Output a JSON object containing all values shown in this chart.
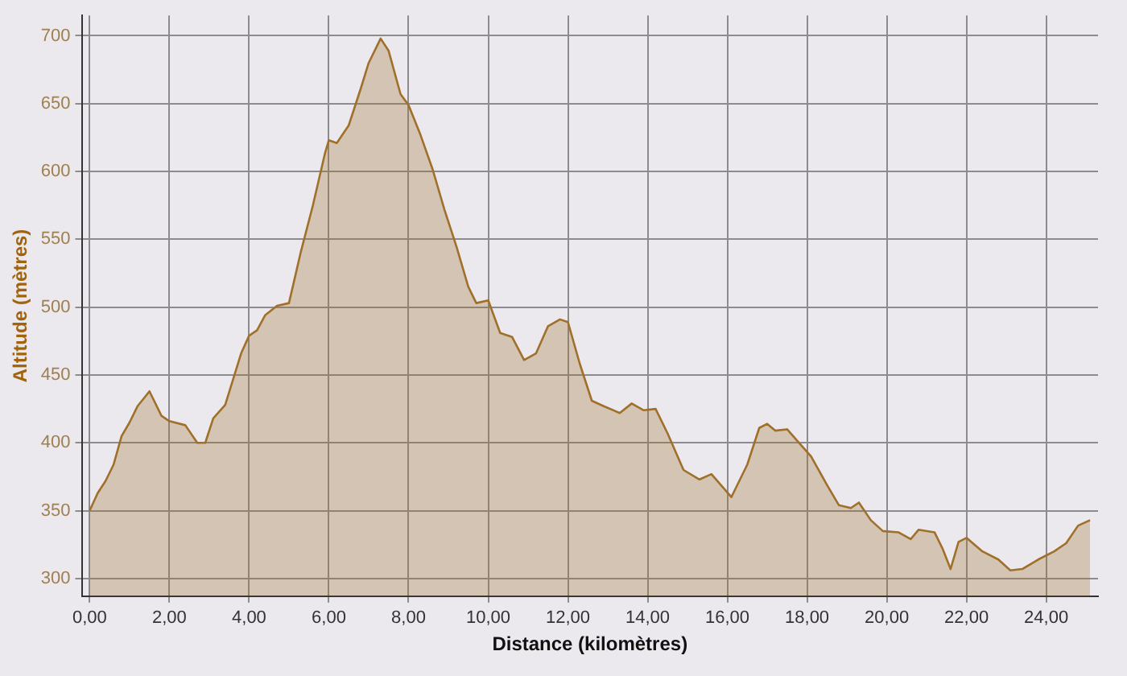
{
  "chart_data": {
    "type": "area",
    "xlabel": "Distance (kilomètres)",
    "ylabel": "Altitude (mètres)",
    "xlim": [
      -0.2,
      25.3
    ],
    "ylim": [
      287,
      715
    ],
    "xticks": [
      {
        "value": 0,
        "label": "0,00"
      },
      {
        "value": 2,
        "label": "2,00"
      },
      {
        "value": 4,
        "label": "4,00"
      },
      {
        "value": 6,
        "label": "6,00"
      },
      {
        "value": 8,
        "label": "8,00"
      },
      {
        "value": 10,
        "label": "10,00"
      },
      {
        "value": 12,
        "label": "12,00"
      },
      {
        "value": 14,
        "label": "14,00"
      },
      {
        "value": 16,
        "label": "16,00"
      },
      {
        "value": 18,
        "label": "18,00"
      },
      {
        "value": 20,
        "label": "20,00"
      },
      {
        "value": 22,
        "label": "22,00"
      },
      {
        "value": 24,
        "label": "24,00"
      }
    ],
    "yticks": [
      300,
      350,
      400,
      450,
      500,
      550,
      600,
      650,
      700
    ],
    "grid": true,
    "legend": false,
    "marker": "none",
    "line_style": "solid",
    "series": [
      {
        "color": "#a0702a",
        "x": [
          0,
          0.2,
          0.4,
          0.6,
          0.8,
          1.0,
          1.2,
          1.5,
          1.8,
          2.0,
          2.4,
          2.7,
          2.9,
          3.1,
          3.4,
          3.6,
          3.8,
          4.0,
          4.2,
          4.4,
          4.7,
          5.0,
          5.3,
          5.6,
          5.9,
          6.0,
          6.2,
          6.5,
          6.8,
          7.0,
          7.3,
          7.5,
          7.8,
          8.0,
          8.3,
          8.6,
          8.9,
          9.2,
          9.5,
          9.7,
          10.0,
          10.3,
          10.6,
          10.9,
          11.2,
          11.5,
          11.8,
          12.0,
          12.3,
          12.6,
          12.9,
          13.3,
          13.6,
          13.9,
          14.2,
          14.5,
          14.9,
          15.3,
          15.6,
          16.1,
          16.5,
          16.8,
          17.0,
          17.2,
          17.5,
          17.8,
          18.1,
          18.5,
          18.8,
          19.1,
          19.3,
          19.6,
          19.9,
          20.3,
          20.6,
          20.8,
          21.2,
          21.4,
          21.6,
          21.8,
          22.0,
          22.4,
          22.8,
          23.1,
          23.4,
          23.8,
          24.2,
          24.5,
          24.8,
          25.1
        ],
        "values": [
          350,
          363,
          372,
          384,
          405,
          415,
          427,
          438,
          420,
          416,
          413,
          400,
          400,
          418,
          428,
          447,
          466,
          479,
          483,
          494,
          501,
          503,
          541,
          575,
          613,
          623,
          621,
          634,
          661,
          680,
          698,
          689,
          657,
          649,
          627,
          602,
          572,
          545,
          515,
          503,
          505,
          481,
          478,
          461,
          466,
          486,
          491,
          489,
          458,
          431,
          427,
          422,
          429,
          424,
          425,
          407,
          380,
          373,
          377,
          360,
          384,
          411,
          414,
          409,
          410,
          400,
          390,
          369,
          354,
          352,
          356,
          343,
          335,
          334,
          329,
          336,
          334,
          322,
          307,
          327,
          330,
          320,
          314,
          306,
          307,
          314,
          320,
          326,
          339,
          343
        ]
      }
    ]
  }
}
